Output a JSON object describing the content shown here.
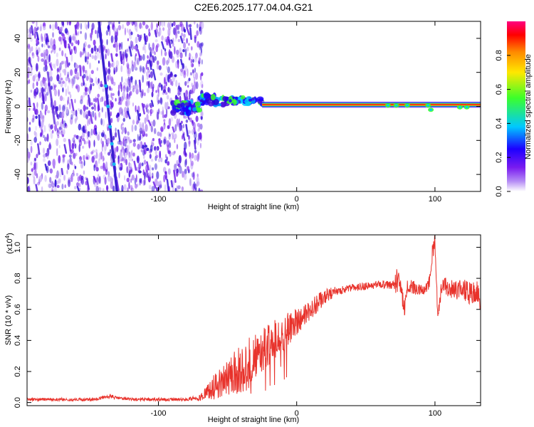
{
  "title": "C2E6.2025.177.04.04.G21",
  "colors": {
    "snr_line": "#e8322b",
    "track": "#3a1fd0",
    "scatter": "#8b3cf2",
    "colormap": [
      "#ffffff",
      "#8a2be2",
      "#1c00ff",
      "#00c8ff",
      "#3cff2a",
      "#ffe800",
      "#ff8a00",
      "#ff0000",
      "#ff0080"
    ]
  },
  "chart_data": [
    {
      "type": "heatmap",
      "title": "C2E6.2025.177.04.04.G21",
      "xlabel": "Height of straight line (km)",
      "ylabel": "Frequency (Hz)",
      "xlim": [
        -195,
        133
      ],
      "ylim": [
        -50,
        50
      ],
      "x_ticks": [
        -100,
        0,
        100
      ],
      "y_ticks": [
        -40,
        -20,
        0,
        20,
        40
      ],
      "grid": false,
      "colorbar": {
        "label": "Normalized spectral amplitude",
        "range": [
          0,
          1
        ],
        "ticks": [
          0.0,
          0.2,
          0.4,
          0.6,
          0.8
        ]
      },
      "features": {
        "carrier_line_x_range": [
          -25,
          133
        ],
        "carrier_line_freq": 1,
        "noise_region_x_range": [
          -195,
          -68
        ],
        "transition_x_range": [
          -90,
          -25
        ],
        "slanted_track": {
          "x": [
            -143,
            -130
          ],
          "freq": [
            50,
            -50
          ]
        },
        "secondary_track": {
          "x": [
            -180,
            -175
          ],
          "freq": [
            20,
            -10
          ]
        },
        "bright_spots": [
          {
            "x": 66,
            "freq": 0.5
          },
          {
            "x": 72,
            "freq": 0.5
          },
          {
            "x": 80,
            "freq": 0.5
          },
          {
            "x": 95,
            "freq": 0.5
          },
          {
            "x": 97,
            "freq": -2
          },
          {
            "x": 118,
            "freq": -0.5
          },
          {
            "x": 123,
            "freq": -0.5
          }
        ]
      }
    },
    {
      "type": "line",
      "xlabel": "Height of straight line (km)",
      "ylabel": "SNR (10 * v/v)",
      "y_multiplier_label": "(x10",
      "y_multiplier_exponent": "4",
      "y_multiplier_close": ")",
      "xlim": [
        -195,
        133
      ],
      "ylim": [
        -0.02,
        1.08
      ],
      "x_ticks": [
        -100,
        0,
        100
      ],
      "y_ticks": [
        0.0,
        0.2,
        0.4,
        0.6,
        0.8,
        1.0
      ],
      "grid": false,
      "series": [
        {
          "x": [
            -195,
            -180,
            -160,
            -145,
            -135,
            -130,
            -120,
            -100,
            -80,
            -70,
            -65,
            -60,
            -55,
            -50,
            -45,
            -40,
            -35,
            -30,
            -25,
            -20,
            -15,
            -10,
            -5,
            0,
            5,
            10,
            15,
            20,
            30,
            40,
            50,
            60,
            70,
            72,
            75,
            78,
            80,
            85,
            90,
            95,
            98,
            100,
            102,
            105,
            110,
            115,
            120,
            125,
            130,
            133
          ],
          "values": [
            0.02,
            0.02,
            0.02,
            0.02,
            0.04,
            0.03,
            0.02,
            0.02,
            0.02,
            0.03,
            0.06,
            0.1,
            0.13,
            0.16,
            0.19,
            0.22,
            0.26,
            0.3,
            0.34,
            0.38,
            0.42,
            0.45,
            0.48,
            0.52,
            0.56,
            0.6,
            0.64,
            0.68,
            0.72,
            0.74,
            0.75,
            0.76,
            0.76,
            0.77,
            0.75,
            0.6,
            0.75,
            0.74,
            0.72,
            0.73,
            0.95,
            1.05,
            0.55,
            0.76,
            0.74,
            0.72,
            0.73,
            0.7,
            0.72,
            0.66
          ],
          "noise_amplitude": [
            0.01,
            0.01,
            0.01,
            0.01,
            0.015,
            0.01,
            0.01,
            0.01,
            0.01,
            0.02,
            0.05,
            0.08,
            0.1,
            0.12,
            0.14,
            0.16,
            0.16,
            0.16,
            0.14,
            0.14,
            0.13,
            0.12,
            0.1,
            0.09,
            0.08,
            0.07,
            0.06,
            0.05,
            0.03,
            0.025,
            0.025,
            0.025,
            0.03,
            0.1,
            0.06,
            0.05,
            0.05,
            0.05,
            0.05,
            0.06,
            0.06,
            0.05,
            0.05,
            0.05,
            0.06,
            0.06,
            0.07,
            0.07,
            0.07,
            0.07
          ]
        }
      ]
    }
  ]
}
